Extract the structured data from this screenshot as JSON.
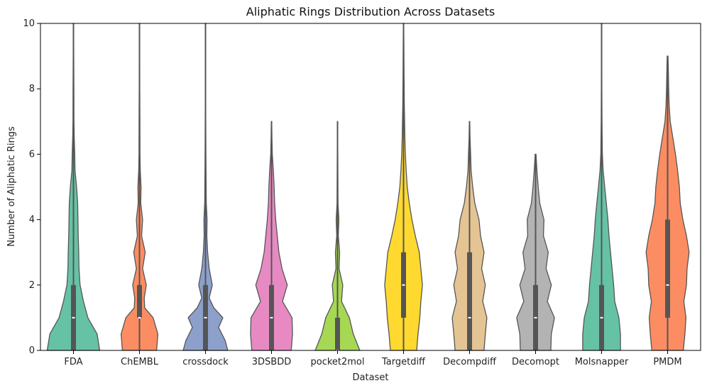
{
  "chart_data": {
    "type": "violin",
    "title": "Aliphatic Rings Distribution Across Datasets",
    "xlabel": "Dataset",
    "ylabel": "Number of Aliphatic Rings",
    "ylim": [
      0,
      10
    ],
    "yticks": [
      0,
      2,
      4,
      6,
      8,
      10
    ],
    "grid": false,
    "categories": [
      "FDA",
      "ChEMBL",
      "crossdock",
      "3DSBDD",
      "pocket2mol",
      "Targetdiff",
      "Decompdiff",
      "Decomopt",
      "Molsnapper",
      "PMDM"
    ],
    "colors": [
      "#66c2a5",
      "#fc8d62",
      "#8da0cb",
      "#e78ac3",
      "#a6d854",
      "#ffd92f",
      "#e5c494",
      "#b3b3b3",
      "#66c2a5",
      "#fc8d62"
    ],
    "series": [
      {
        "category": "FDA",
        "min": 0,
        "q1": 0,
        "median": 1,
        "q3": 2,
        "max": 10,
        "density": [
          [
            0,
            1.0
          ],
          [
            0.5,
            0.9
          ],
          [
            1,
            0.55
          ],
          [
            1.5,
            0.38
          ],
          [
            2,
            0.25
          ],
          [
            2.5,
            0.21
          ],
          [
            3,
            0.2
          ],
          [
            3.5,
            0.18
          ],
          [
            4,
            0.17
          ],
          [
            4.5,
            0.16
          ],
          [
            5,
            0.12
          ],
          [
            5.5,
            0.06
          ],
          [
            6,
            0.05
          ],
          [
            6.5,
            0.03
          ],
          [
            7,
            0.02
          ],
          [
            8,
            0.015
          ],
          [
            9,
            0.01
          ],
          [
            10,
            0.008
          ]
        ]
      },
      {
        "category": "ChEMBL",
        "min": 0,
        "q1": 1,
        "median": 1,
        "q3": 2,
        "max": 10,
        "density": [
          [
            0,
            0.65
          ],
          [
            0.5,
            0.7
          ],
          [
            1,
            0.52
          ],
          [
            1.3,
            0.2
          ],
          [
            1.6,
            0.18
          ],
          [
            2,
            0.26
          ],
          [
            2.5,
            0.12
          ],
          [
            3,
            0.22
          ],
          [
            3.5,
            0.08
          ],
          [
            4,
            0.12
          ],
          [
            4.5,
            0.05
          ],
          [
            5,
            0.06
          ],
          [
            5.5,
            0.03
          ],
          [
            6,
            0.02
          ],
          [
            7,
            0.015
          ],
          [
            8,
            0.01
          ],
          [
            10,
            0.008
          ]
        ]
      },
      {
        "category": "crossdock",
        "min": 0,
        "q1": 0,
        "median": 1,
        "q3": 2,
        "max": 10,
        "density": [
          [
            0,
            0.85
          ],
          [
            0.3,
            0.75
          ],
          [
            0.7,
            0.5
          ],
          [
            1,
            0.66
          ],
          [
            1.3,
            0.32
          ],
          [
            1.6,
            0.14
          ],
          [
            2,
            0.26
          ],
          [
            2.5,
            0.14
          ],
          [
            3,
            0.08
          ],
          [
            3.5,
            0.05
          ],
          [
            4,
            0.06
          ],
          [
            4.5,
            0.03
          ],
          [
            5,
            0.025
          ],
          [
            6,
            0.015
          ],
          [
            7,
            0.01
          ],
          [
            8,
            0.008
          ],
          [
            10,
            0.006
          ]
        ]
      },
      {
        "category": "3DSBDD",
        "min": 0,
        "q1": 0,
        "median": 1,
        "q3": 2,
        "max": 7,
        "density": [
          [
            0,
            0.75
          ],
          [
            0.5,
            0.8
          ],
          [
            1,
            0.78
          ],
          [
            1.5,
            0.42
          ],
          [
            2,
            0.6
          ],
          [
            2.5,
            0.4
          ],
          [
            3,
            0.28
          ],
          [
            3.5,
            0.22
          ],
          [
            4,
            0.16
          ],
          [
            4.5,
            0.12
          ],
          [
            5,
            0.1
          ],
          [
            5.5,
            0.07
          ],
          [
            6,
            0.03
          ],
          [
            6.5,
            0.015
          ],
          [
            7,
            0.008
          ]
        ]
      },
      {
        "category": "pocket2mol",
        "min": 0,
        "q1": 0,
        "median": 0,
        "q3": 1,
        "max": 7,
        "density": [
          [
            0,
            0.85
          ],
          [
            0.5,
            0.6
          ],
          [
            1,
            0.45
          ],
          [
            1.5,
            0.15
          ],
          [
            2,
            0.2
          ],
          [
            2.5,
            0.06
          ],
          [
            3,
            0.08
          ],
          [
            3.5,
            0.03
          ],
          [
            4,
            0.05
          ],
          [
            4.5,
            0.02
          ],
          [
            5,
            0.015
          ],
          [
            6,
            0.01
          ],
          [
            7,
            0.006
          ]
        ]
      },
      {
        "category": "Targetdiff",
        "min": 0,
        "q1": 1,
        "median": 2,
        "q3": 3,
        "max": 10,
        "density": [
          [
            0,
            0.5
          ],
          [
            0.5,
            0.55
          ],
          [
            1,
            0.62
          ],
          [
            1.5,
            0.66
          ],
          [
            2,
            0.72
          ],
          [
            2.5,
            0.66
          ],
          [
            3,
            0.6
          ],
          [
            3.5,
            0.45
          ],
          [
            4,
            0.32
          ],
          [
            4.5,
            0.22
          ],
          [
            5,
            0.14
          ],
          [
            5.5,
            0.1
          ],
          [
            6,
            0.07
          ],
          [
            6.5,
            0.05
          ],
          [
            7,
            0.04
          ],
          [
            7.5,
            0.03
          ],
          [
            8,
            0.025
          ],
          [
            8.5,
            0.02
          ],
          [
            9,
            0.015
          ],
          [
            10,
            0.008
          ]
        ]
      },
      {
        "category": "Decompdiff",
        "min": 0,
        "q1": 0,
        "median": 1,
        "q3": 3,
        "max": 7,
        "density": [
          [
            0,
            0.55
          ],
          [
            0.5,
            0.6
          ],
          [
            1,
            0.66
          ],
          [
            1.5,
            0.5
          ],
          [
            2,
            0.6
          ],
          [
            2.5,
            0.46
          ],
          [
            3,
            0.55
          ],
          [
            3.5,
            0.42
          ],
          [
            4,
            0.36
          ],
          [
            4.5,
            0.2
          ],
          [
            5,
            0.12
          ],
          [
            5.5,
            0.06
          ],
          [
            6,
            0.04
          ],
          [
            6.5,
            0.02
          ],
          [
            7,
            0.008
          ]
        ]
      },
      {
        "category": "Decomopt",
        "min": 0,
        "q1": 0,
        "median": 1,
        "q3": 2,
        "max": 6,
        "density": [
          [
            0,
            0.58
          ],
          [
            0.5,
            0.6
          ],
          [
            1,
            0.72
          ],
          [
            1.5,
            0.45
          ],
          [
            2,
            0.6
          ],
          [
            2.5,
            0.4
          ],
          [
            3,
            0.48
          ],
          [
            3.5,
            0.3
          ],
          [
            4,
            0.32
          ],
          [
            4.5,
            0.16
          ],
          [
            5,
            0.1
          ],
          [
            5.5,
            0.05
          ],
          [
            6,
            0.015
          ]
        ]
      },
      {
        "category": "Molsnapper",
        "min": 0,
        "q1": 0,
        "median": 1,
        "q3": 2,
        "max": 10,
        "density": [
          [
            0,
            0.72
          ],
          [
            0.5,
            0.72
          ],
          [
            1,
            0.66
          ],
          [
            1.5,
            0.5
          ],
          [
            2,
            0.46
          ],
          [
            2.5,
            0.4
          ],
          [
            3,
            0.34
          ],
          [
            3.5,
            0.28
          ],
          [
            4,
            0.24
          ],
          [
            4.5,
            0.18
          ],
          [
            5,
            0.12
          ],
          [
            5.5,
            0.06
          ],
          [
            6,
            0.03
          ],
          [
            7,
            0.015
          ],
          [
            8,
            0.01
          ],
          [
            9,
            0.008
          ],
          [
            10,
            0.006
          ]
        ]
      },
      {
        "category": "PMDM",
        "min": 0,
        "q1": 1,
        "median": 2,
        "q3": 4,
        "max": 9,
        "density": [
          [
            0,
            0.6
          ],
          [
            0.5,
            0.66
          ],
          [
            1,
            0.7
          ],
          [
            1.5,
            0.62
          ],
          [
            2,
            0.72
          ],
          [
            2.5,
            0.74
          ],
          [
            3,
            0.82
          ],
          [
            3.5,
            0.72
          ],
          [
            4,
            0.58
          ],
          [
            4.5,
            0.48
          ],
          [
            5,
            0.45
          ],
          [
            5.5,
            0.38
          ],
          [
            6,
            0.3
          ],
          [
            6.5,
            0.2
          ],
          [
            7,
            0.1
          ],
          [
            7.5,
            0.06
          ],
          [
            8,
            0.04
          ],
          [
            8.5,
            0.03
          ],
          [
            9,
            0.015
          ]
        ]
      }
    ]
  }
}
